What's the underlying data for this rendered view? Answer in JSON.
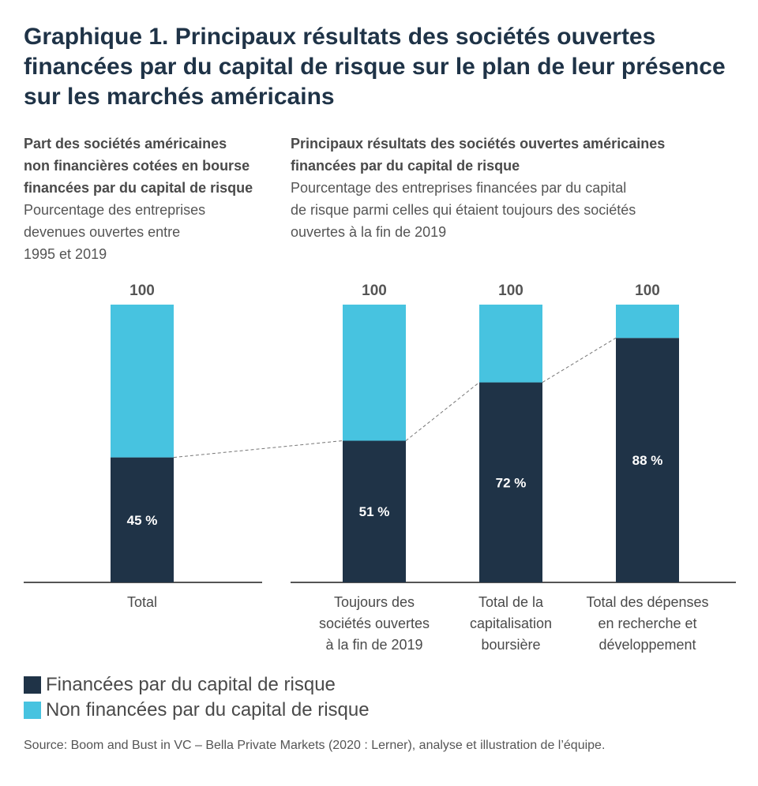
{
  "title": "Graphique 1. Principaux résultats des sociétés ouvertes financées par du capital de risque sur le plan de leur présence sur les marchés américains",
  "left_panel": {
    "title_lines": [
      "Part des sociétés américaines",
      "non financières cotées en bourse",
      "financées par du capital de risque"
    ],
    "subtitle_lines": [
      "Pourcentage des entreprises",
      "devenues ouvertes entre",
      "1995 et 2019"
    ]
  },
  "right_panel": {
    "title_lines": [
      "Principaux résultats des sociétés ouvertes américaines",
      "financées par du capital de risque"
    ],
    "subtitle_lines": [
      "Pourcentage des entreprises financées par du capital",
      "de risque parmi celles qui étaient toujours des sociétés",
      "ouvertes à la fin de 2019"
    ]
  },
  "colors": {
    "vc": "#1f3347",
    "non_vc": "#47c3e0",
    "axis": "#555555",
    "connector": "#777777"
  },
  "chart_data": {
    "type": "bar",
    "stacked": true,
    "ylim": [
      0,
      100
    ],
    "grid": false,
    "legend_position": "bottom-left",
    "categories": [
      [
        "Total"
      ],
      [
        "Toujours des",
        "sociétés ouvertes",
        "à la fin de 2019"
      ],
      [
        "Total de la",
        "capitalisation",
        "boursière"
      ],
      [
        "Total des dépenses",
        "en recherche et",
        "développement"
      ]
    ],
    "series": [
      {
        "name": "Financées par du capital de risque",
        "values": [
          45,
          51,
          72,
          88
        ],
        "labels": [
          "45 %",
          "51 %",
          "72 %",
          "88 %"
        ]
      },
      {
        "name": "Non financées par du capital de risque",
        "values": [
          55,
          49,
          28,
          12
        ]
      }
    ],
    "totals": [
      "100",
      "100",
      "100",
      "100"
    ]
  },
  "source": "Source: Boom and Bust in VC – Bella Private Markets (2020 : Lerner), analyse et illustration de l’équipe."
}
